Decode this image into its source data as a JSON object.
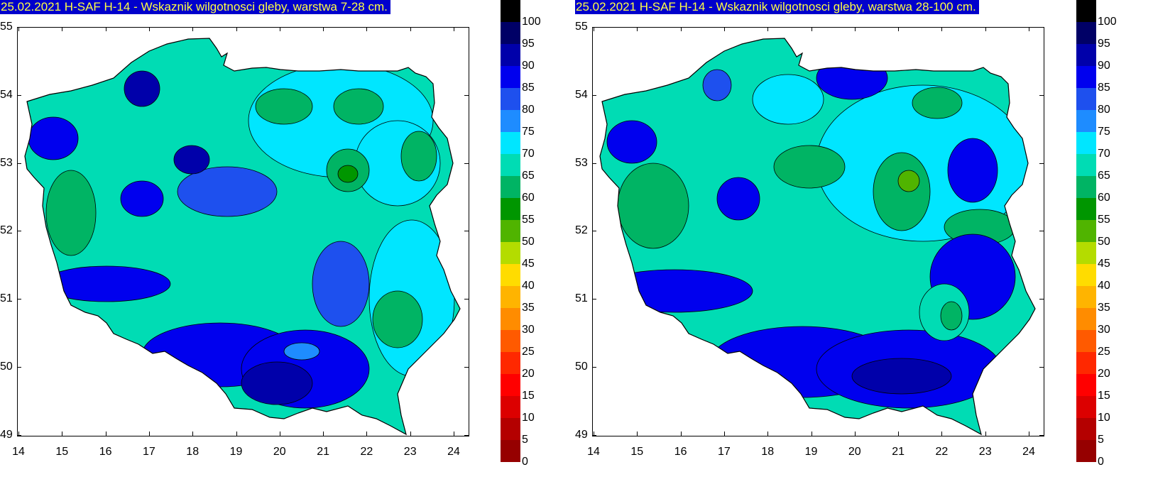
{
  "panels": [
    {
      "title": "25.02.2021 H-SAF H-14 - Wskaznik wilgotnosci gleby, warstwa 7-28 cm.",
      "x_ticks": [
        "14",
        "15",
        "16",
        "17",
        "18",
        "19",
        "20",
        "21",
        "22",
        "23",
        "24"
      ],
      "y_ticks": [
        "55",
        "54",
        "53",
        "52",
        "51",
        "50",
        "49"
      ]
    },
    {
      "title": "25.02.2021 H-SAF H-14 - Wskaznik wilgotnosci gleby, warstwa 28-100 cm.",
      "x_ticks": [
        "14",
        "15",
        "16",
        "17",
        "18",
        "19",
        "20",
        "21",
        "22",
        "23",
        "24"
      ],
      "y_ticks": [
        "55",
        "54",
        "53",
        "52",
        "51",
        "50",
        "49"
      ]
    }
  ],
  "legend": {
    "labels": [
      "100",
      "95",
      "90",
      "85",
      "80",
      "75",
      "70",
      "65",
      "60",
      "55",
      "50",
      "45",
      "40",
      "35",
      "30",
      "25",
      "20",
      "15",
      "10",
      "5",
      "0"
    ],
    "colors": [
      "#000000",
      "#000066",
      "#0000aa",
      "#0000ee",
      "#1e50ee",
      "#1e8cff",
      "#00e6ff",
      "#00dcb4",
      "#00b464",
      "#009600",
      "#50b400",
      "#b4dc00",
      "#ffdc00",
      "#ffb400",
      "#ff8c00",
      "#ff5a00",
      "#ff2800",
      "#ff0000",
      "#dc0000",
      "#b40000",
      "#960000"
    ]
  },
  "map_colors": {
    "cyan": "#00e6ff",
    "teal": "#00dcb4",
    "green": "#00b464",
    "dkgreen": "#009600",
    "blue": "#0000ee",
    "midblue": "#1e50ee",
    "ltblue": "#1e8cff",
    "navy": "#0000aa"
  }
}
